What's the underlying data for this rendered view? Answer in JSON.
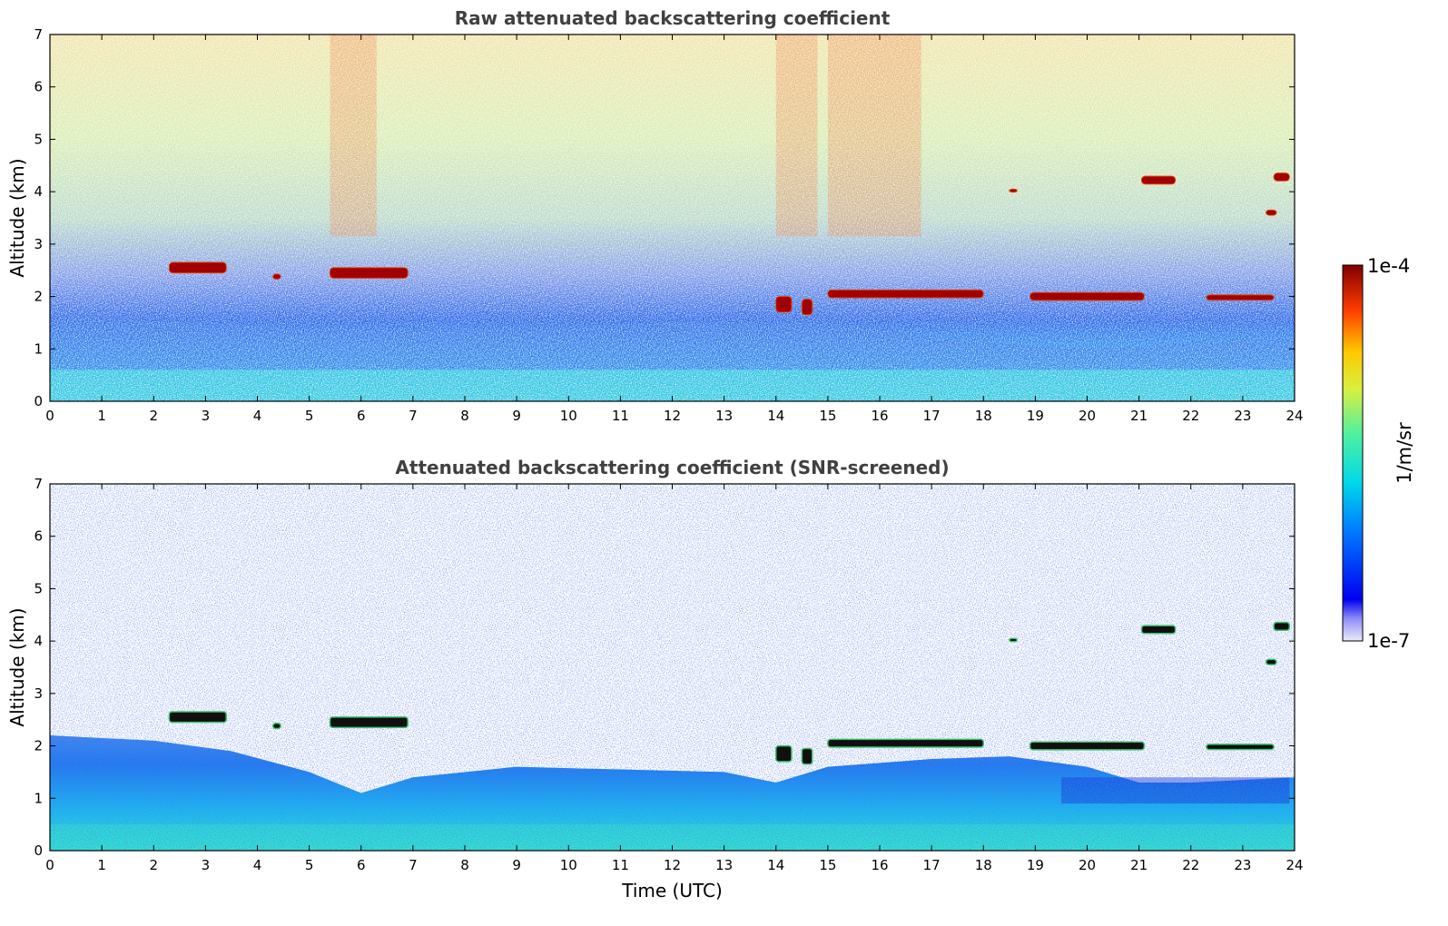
{
  "chart_data": [
    {
      "type": "heatmap",
      "title": "Raw attenuated backscattering coefficient",
      "xlabel": "",
      "ylabel": "Altitude (km)",
      "xlim": [
        0,
        24
      ],
      "ylim": [
        0,
        7
      ],
      "xticks": [
        0,
        1,
        2,
        3,
        4,
        5,
        6,
        7,
        8,
        9,
        10,
        11,
        12,
        13,
        14,
        15,
        16,
        17,
        18,
        19,
        20,
        21,
        22,
        23,
        24
      ],
      "yticks": [
        0,
        1,
        2,
        3,
        4,
        5,
        6,
        7
      ],
      "boundary_layer": [
        {
          "t": 0,
          "top_km": 1.6
        },
        {
          "t": 3,
          "top_km": 1.5
        },
        {
          "t": 6,
          "top_km": 1.3
        },
        {
          "t": 9,
          "top_km": 1.4
        },
        {
          "t": 12,
          "top_km": 1.5
        },
        {
          "t": 15,
          "top_km": 1.5
        },
        {
          "t": 17,
          "top_km": 1.2
        },
        {
          "t": 20,
          "top_km": 1.0
        },
        {
          "t": 24,
          "top_km": 1.2
        }
      ],
      "cloud_layers": [
        {
          "t_start": 2.3,
          "t_end": 3.4,
          "alt_km": 2.55,
          "thickness_km": 0.2
        },
        {
          "t_start": 4.3,
          "t_end": 4.45,
          "alt_km": 2.38,
          "thickness_km": 0.1
        },
        {
          "t_start": 5.4,
          "t_end": 6.9,
          "alt_km": 2.45,
          "thickness_km": 0.2
        },
        {
          "t_start": 14.0,
          "t_end": 14.3,
          "alt_km": 1.85,
          "thickness_km": 0.3
        },
        {
          "t_start": 14.5,
          "t_end": 14.7,
          "alt_km": 1.8,
          "thickness_km": 0.3
        },
        {
          "t_start": 15.0,
          "t_end": 18.0,
          "alt_km": 2.05,
          "thickness_km": 0.15
        },
        {
          "t_start": 18.9,
          "t_end": 21.1,
          "alt_km": 2.0,
          "thickness_km": 0.15
        },
        {
          "t_start": 22.3,
          "t_end": 23.6,
          "alt_km": 1.98,
          "thickness_km": 0.1
        },
        {
          "t_start": 18.5,
          "t_end": 18.65,
          "alt_km": 4.02,
          "thickness_km": 0.06
        },
        {
          "t_start": 21.05,
          "t_end": 21.7,
          "alt_km": 4.22,
          "thickness_km": 0.15
        },
        {
          "t_start": 23.6,
          "t_end": 23.9,
          "alt_km": 4.28,
          "thickness_km": 0.15
        },
        {
          "t_start": 23.45,
          "t_end": 23.65,
          "alt_km": 3.6,
          "thickness_km": 0.1
        }
      ],
      "noise_plumes": [
        {
          "t_start": 5.4,
          "t_end": 6.3
        },
        {
          "t_start": 14.0,
          "t_end": 14.8
        },
        {
          "t_start": 15.0,
          "t_end": 16.8
        }
      ]
    },
    {
      "type": "heatmap",
      "title": "Attenuated backscattering coefficient (SNR-screened)",
      "xlabel": "Time (UTC)",
      "ylabel": "Altitude (km)",
      "xlim": [
        0,
        24
      ],
      "ylim": [
        0,
        7
      ],
      "xticks": [
        0,
        1,
        2,
        3,
        4,
        5,
        6,
        7,
        8,
        9,
        10,
        11,
        12,
        13,
        14,
        15,
        16,
        17,
        18,
        19,
        20,
        21,
        22,
        23,
        24
      ],
      "yticks": [
        0,
        1,
        2,
        3,
        4,
        5,
        6,
        7
      ],
      "screened_top": [
        {
          "t": 0,
          "top_km": 2.2
        },
        {
          "t": 2,
          "top_km": 2.1
        },
        {
          "t": 3.5,
          "top_km": 1.9
        },
        {
          "t": 5,
          "top_km": 1.5
        },
        {
          "t": 6,
          "top_km": 1.1
        },
        {
          "t": 7,
          "top_km": 1.4
        },
        {
          "t": 9,
          "top_km": 1.6
        },
        {
          "t": 11,
          "top_km": 1.55
        },
        {
          "t": 13,
          "top_km": 1.5
        },
        {
          "t": 14,
          "top_km": 1.3
        },
        {
          "t": 15,
          "top_km": 1.6
        },
        {
          "t": 17,
          "top_km": 1.75
        },
        {
          "t": 18.5,
          "top_km": 1.8
        },
        {
          "t": 20,
          "top_km": 1.6
        },
        {
          "t": 21,
          "top_km": 1.3
        },
        {
          "t": 22,
          "top_km": 1.3
        },
        {
          "t": 24,
          "top_km": 1.4
        }
      ]
    }
  ],
  "colorbar": {
    "label": "1/m/sr",
    "max_label": "1e-4",
    "min_label": "1e-7",
    "scale": "log",
    "colormap": "jet"
  }
}
